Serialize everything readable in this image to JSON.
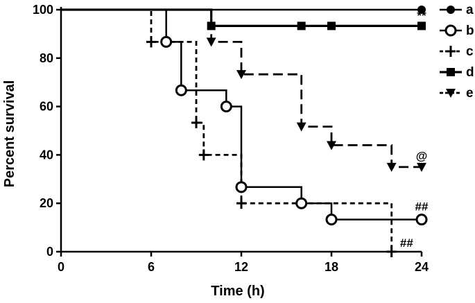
{
  "chart_data": {
    "type": "line",
    "title": "",
    "xlabel": "Time (h)",
    "ylabel": "Percent survival",
    "xlim": [
      0,
      24
    ],
    "ylim": [
      0,
      100
    ],
    "xticks": [
      0,
      6,
      12,
      18,
      24
    ],
    "yticks": [
      0,
      20,
      40,
      60,
      80,
      100
    ],
    "grid": false,
    "legend_position": "right",
    "series": [
      {
        "name": "a",
        "line_style": "solid",
        "marker": "circle-filled",
        "steps": [
          [
            0,
            100
          ],
          [
            24,
            100
          ]
        ],
        "markers": [
          [
            24,
            100
          ]
        ]
      },
      {
        "name": "b",
        "line_style": "solid",
        "marker": "circle-open",
        "steps": [
          [
            0,
            100
          ],
          [
            7,
            100
          ],
          [
            7,
            86.7
          ],
          [
            8,
            86.7
          ],
          [
            8,
            66.7
          ],
          [
            11,
            66.7
          ],
          [
            11,
            60
          ],
          [
            12,
            60
          ],
          [
            12,
            26.7
          ],
          [
            16,
            26.7
          ],
          [
            16,
            20
          ],
          [
            18,
            20
          ],
          [
            18,
            13.3
          ],
          [
            24,
            13.3
          ]
        ],
        "markers": [
          [
            7,
            86.7
          ],
          [
            8,
            66.7
          ],
          [
            11,
            60
          ],
          [
            12,
            26.7
          ],
          [
            16,
            20
          ],
          [
            18,
            13.3
          ],
          [
            24,
            13.3
          ]
        ]
      },
      {
        "name": "c",
        "line_style": "dashed",
        "marker": "plus",
        "steps": [
          [
            0,
            100
          ],
          [
            6,
            100
          ],
          [
            6,
            86.7
          ],
          [
            9,
            86.7
          ],
          [
            9,
            53.3
          ],
          [
            9.5,
            53.3
          ],
          [
            9.5,
            40
          ],
          [
            12,
            40
          ],
          [
            12,
            20
          ],
          [
            22,
            20
          ],
          [
            22,
            0
          ]
        ],
        "markers": [
          [
            6,
            86.7
          ],
          [
            9,
            53.3
          ],
          [
            9.5,
            40
          ],
          [
            12,
            20
          ],
          [
            22,
            0
          ]
        ]
      },
      {
        "name": "d",
        "line_style": "solid-thick",
        "marker": "square",
        "steps": [
          [
            0,
            100
          ],
          [
            10,
            100
          ],
          [
            10,
            93.3
          ],
          [
            24,
            93.3
          ]
        ],
        "markers": [
          [
            10,
            93.3
          ],
          [
            16,
            93.3
          ],
          [
            18,
            93.3
          ],
          [
            24,
            93.3
          ]
        ]
      },
      {
        "name": "e",
        "line_style": "long-dashed",
        "marker": "triangle-down",
        "steps": [
          [
            0,
            100
          ],
          [
            10,
            100
          ],
          [
            10,
            86.7
          ],
          [
            12,
            86.7
          ],
          [
            12,
            73.3
          ],
          [
            16,
            73.3
          ],
          [
            16,
            51.7
          ],
          [
            18,
            51.7
          ],
          [
            18,
            44
          ],
          [
            22,
            44
          ],
          [
            22,
            35
          ],
          [
            24,
            35
          ]
        ],
        "markers": [
          [
            10,
            86.7
          ],
          [
            12,
            73.3
          ],
          [
            16,
            51.7
          ],
          [
            18,
            44
          ],
          [
            22,
            35
          ],
          [
            24,
            35
          ]
        ]
      }
    ],
    "annotations": [
      {
        "text": "**",
        "x": 24,
        "y": 96
      },
      {
        "text": "@",
        "x": 24,
        "y": 38
      },
      {
        "text": "##",
        "x": 24,
        "y": 17
      },
      {
        "text": "##",
        "x": 23,
        "y": 2
      }
    ]
  }
}
